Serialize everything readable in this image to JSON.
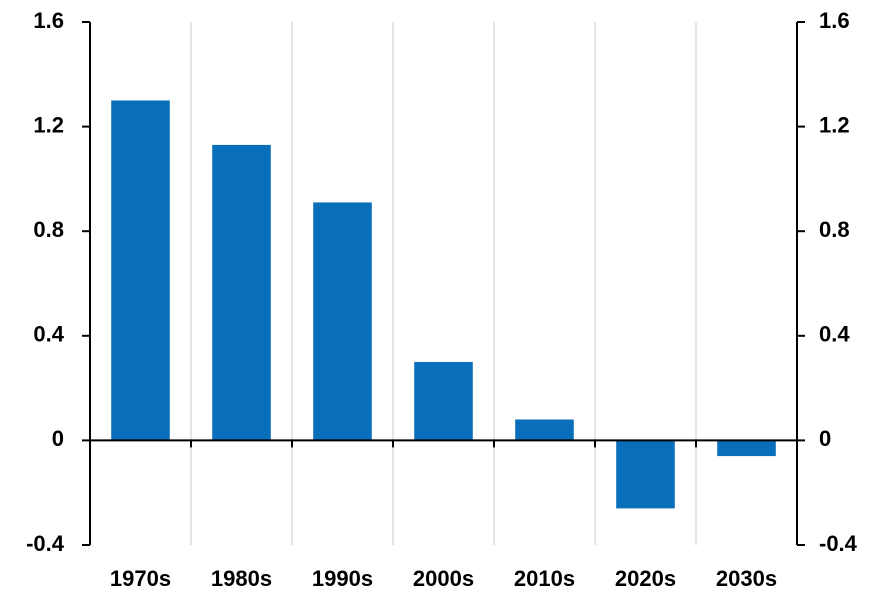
{
  "chart_data": {
    "type": "bar",
    "categories": [
      "1970s",
      "1980s",
      "1990s",
      "2000s",
      "2010s",
      "2020s",
      "2030s"
    ],
    "values": [
      1.3,
      1.13,
      0.91,
      0.3,
      0.08,
      -0.26,
      -0.06
    ],
    "color": "#0a6fba",
    "ylim": [
      -0.4,
      1.6
    ],
    "yticks": [
      1.6,
      1.2,
      0.8,
      0.4,
      0,
      -0.4
    ],
    "y2lim": [
      -0.4,
      1.6
    ],
    "y2ticks": [
      1.6,
      1.2,
      0.8,
      0.4,
      0,
      -0.4
    ],
    "grid": true
  }
}
